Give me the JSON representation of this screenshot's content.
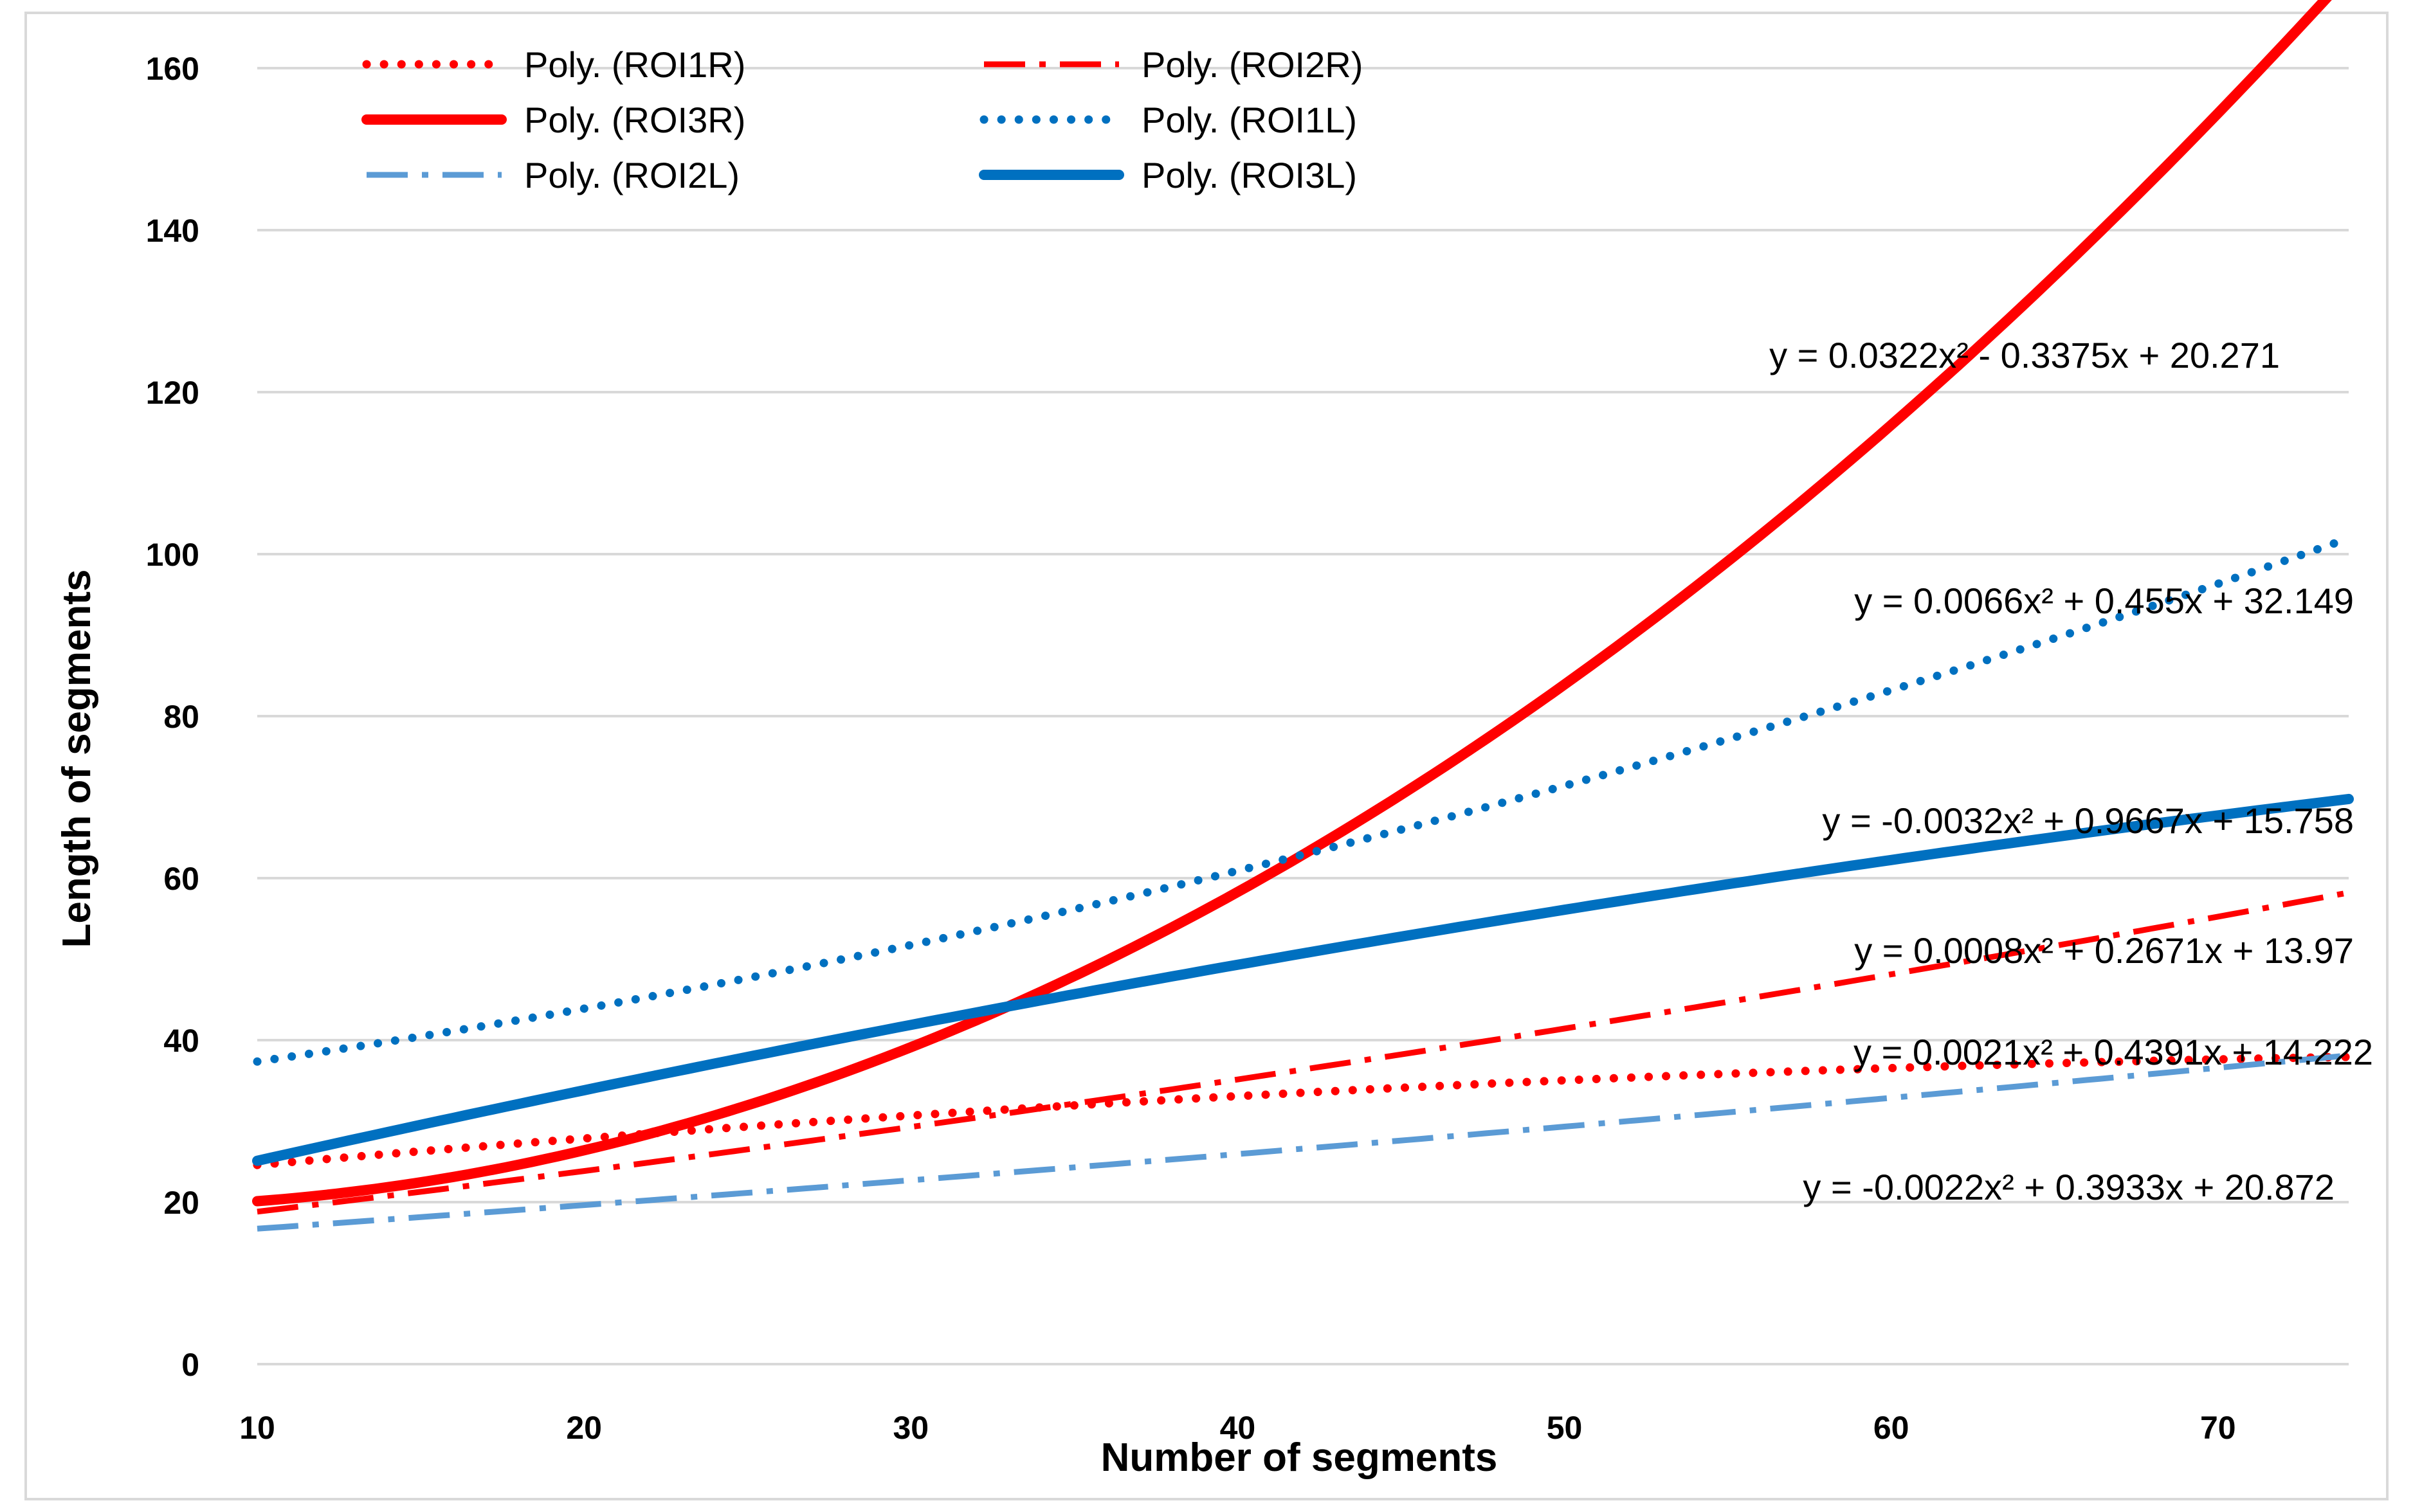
{
  "chart_data": {
    "type": "line",
    "title": "",
    "xlabel": "Number of segments",
    "ylabel": "Length of segments",
    "xlim": [
      10,
      74
    ],
    "ylim": [
      0,
      160
    ],
    "xticks": [
      10,
      20,
      30,
      40,
      50,
      60,
      70
    ],
    "yticks": [
      0,
      20,
      40,
      60,
      80,
      100,
      120,
      140,
      160
    ],
    "grid": true,
    "legend_position": "top-left",
    "series": [
      {
        "name": "Poly. (ROI1R)",
        "color": "#ff0000",
        "style": "dotted",
        "coeffs": [
          -0.0022,
          0.3933,
          20.872
        ],
        "equation": "y = -0.0022x² + 0.3933x + 20.872"
      },
      {
        "name": "Poly. (ROI2R)",
        "color": "#ff0000",
        "style": "dashdot",
        "coeffs": [
          0.0021,
          0.4391,
          14.222
        ],
        "equation": "y = 0.0021x² + 0.4391x + 14.222"
      },
      {
        "name": "Poly. (ROI3R)",
        "color": "#ff0000",
        "style": "solid",
        "coeffs": [
          0.0322,
          -0.3375,
          20.271
        ],
        "equation": "y = 0.0322x² - 0.3375x + 20.271"
      },
      {
        "name": "Poly. (ROI1L)",
        "color": "#0070c0",
        "style": "dotted",
        "coeffs": [
          0.0066,
          0.455,
          32.149
        ],
        "equation": "y = 0.0066x² + 0.455x + 32.149"
      },
      {
        "name": "Poly. (ROI2L)",
        "color": "#5b9bd5",
        "style": "dashdot",
        "coeffs": [
          0.0008,
          0.2671,
          13.97
        ],
        "equation": "y = 0.0008x² + 0.2671x + 13.97"
      },
      {
        "name": "Poly. (ROI3L)",
        "color": "#0070c0",
        "style": "solid",
        "coeffs": [
          -0.0032,
          0.9667,
          15.758
        ],
        "equation": "y = -0.0032x² + 0.9667x + 15.758"
      }
    ]
  }
}
